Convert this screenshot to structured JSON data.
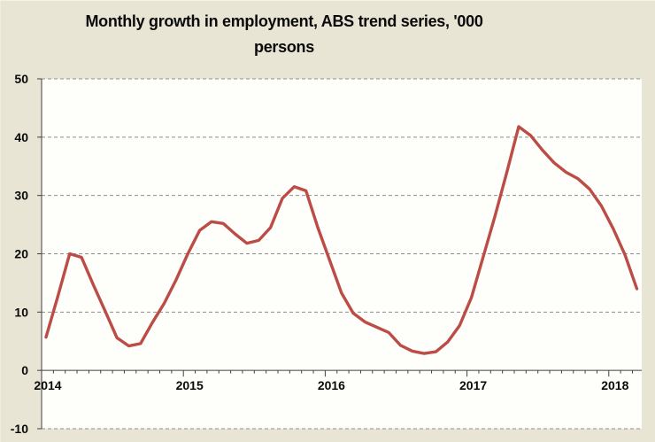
{
  "title_lines": {
    "line1": "Monthly growth in employment, ABS trend series, '000",
    "line2": "persons"
  },
  "colors": {
    "canvas_background": "#e8e5d5",
    "plot_background": "#fefefb",
    "series_line": "#bc4c46",
    "gridline": "#8f8f8f",
    "axis": "#404040",
    "text": "#0a0a0a"
  },
  "chart_data": {
    "type": "line",
    "title": "Monthly growth in employment, ABS trend series, '000 persons",
    "xlabel": "",
    "ylabel": "",
    "ylim": [
      -10,
      50
    ],
    "grid": "horizontal-dashed",
    "legend": "none",
    "x_frequency": "monthly",
    "x_start": "Jan 2014",
    "x_end": "Mar 2018",
    "n_points": 51,
    "x_year_tick_labels": [
      "2014",
      "2015",
      "2016",
      "2017",
      "2018"
    ],
    "y_ticks": [
      50,
      40,
      30,
      20,
      10,
      0,
      -10
    ],
    "y_tick_labels": [
      "50",
      "40",
      "30",
      "20",
      "10",
      "0",
      "-10"
    ],
    "series": [
      {
        "name": "Monthly growth in employment, ABS trend series, '000 persons",
        "color": "#bc4c46",
        "values": [
          5.7,
          12.7,
          20.0,
          19.4,
          14.7,
          10.2,
          5.6,
          4.2,
          4.6,
          8.2,
          11.5,
          15.5,
          20.0,
          24.0,
          25.5,
          25.2,
          23.4,
          21.8,
          22.3,
          24.5,
          29.5,
          31.5,
          30.8,
          24.5,
          18.9,
          13.3,
          9.8,
          8.3,
          7.4,
          6.5,
          4.3,
          3.3,
          2.9,
          3.2,
          4.9,
          7.7,
          12.5,
          19.5,
          26.5,
          34.0,
          41.8,
          40.3,
          37.8,
          35.6,
          34.0,
          32.9,
          31.1,
          28.2,
          24.3,
          19.8,
          14.0
        ]
      }
    ]
  }
}
